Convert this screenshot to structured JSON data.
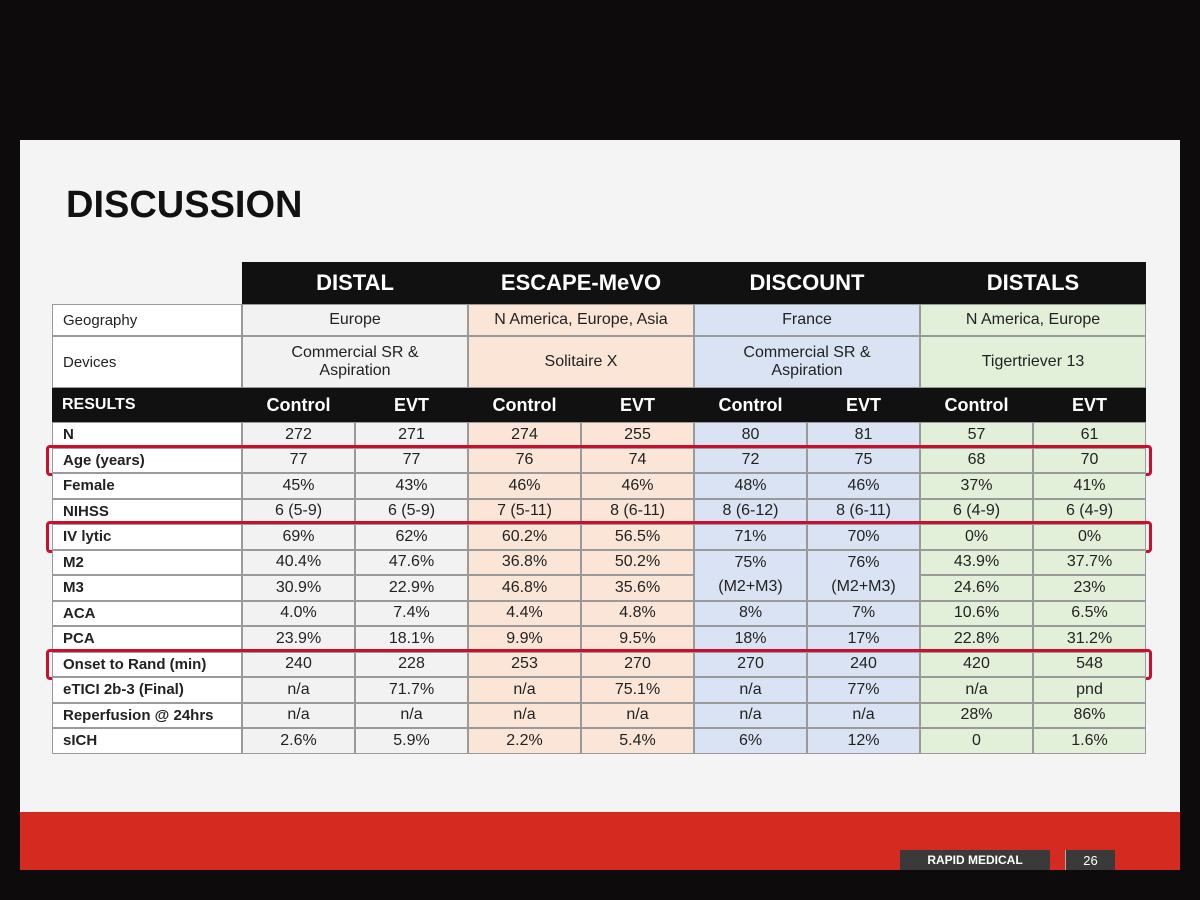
{
  "title": "DISCUSSION",
  "table": {
    "geography_label": "Geography",
    "devices_label": "Devices",
    "results_label": "RESULTS",
    "trials": [
      {
        "name": "DISTAL",
        "geography": "Europe",
        "devices": "Commercial SR & Aspiration"
      },
      {
        "name": "ESCAPE-MeVO",
        "geography": "N America,  Europe, Asia",
        "devices": "Solitaire X"
      },
      {
        "name": "DISCOUNT",
        "geography": "France",
        "devices": "Commercial SR & Aspiration"
      },
      {
        "name": "DISTALS",
        "geography": "N America, Europe",
        "devices": "Tigertriever 13"
      }
    ],
    "arms": [
      "Control",
      "EVT",
      "Control",
      "EVT",
      "Control",
      "EVT",
      "Control",
      "EVT"
    ],
    "rows": [
      {
        "label": "N",
        "values": [
          "272",
          "271",
          "274",
          "255",
          "80",
          "81",
          "57",
          "61"
        ]
      },
      {
        "label": "Age (years)",
        "values": [
          "77",
          "77",
          "76",
          "74",
          "72",
          "75",
          "68",
          "70"
        ]
      },
      {
        "label": "Female",
        "values": [
          "45%",
          "43%",
          "46%",
          "46%",
          "48%",
          "46%",
          "37%",
          "41%"
        ]
      },
      {
        "label": "NIHSS",
        "values": [
          "6 (5-9)",
          "6 (5-9)",
          "7 (5-11)",
          "8 (6-11)",
          "8 (6-12)",
          "8 (6-11)",
          "6 (4-9)",
          "6 (4-9)"
        ]
      },
      {
        "label": "IV lytic",
        "values": [
          "69%",
          "62%",
          "60.2%",
          "56.5%",
          "71%",
          "70%",
          "0%",
          "0%"
        ]
      },
      {
        "label": "M2",
        "values": [
          "40.4%",
          "47.6%",
          "36.8%",
          "50.2%",
          "75%",
          "76%",
          "43.9%",
          "37.7%"
        ]
      },
      {
        "label": "M3",
        "values": [
          "30.9%",
          "22.9%",
          "46.8%",
          "35.6%",
          "(M2+M3)",
          "(M2+M3)",
          "24.6%",
          "23%"
        ]
      },
      {
        "label": "ACA",
        "values": [
          "4.0%",
          "7.4%",
          "4.4%",
          "4.8%",
          "8%",
          "7%",
          "10.6%",
          "6.5%"
        ]
      },
      {
        "label": "PCA",
        "values": [
          "23.9%",
          "18.1%",
          "9.9%",
          "9.5%",
          "18%",
          "17%",
          "22.8%",
          "31.2%"
        ]
      },
      {
        "label": "Onset to Rand (min)",
        "values": [
          "240",
          "228",
          "253",
          "270",
          "270",
          "240",
          "420",
          "548"
        ]
      },
      {
        "label": "eTICI 2b-3 (Final)",
        "values": [
          "n/a",
          "71.7%",
          "n/a",
          "75.1%",
          "n/a",
          "77%",
          "n/a",
          "pnd"
        ]
      },
      {
        "label": "Reperfusion @ 24hrs",
        "values": [
          "n/a",
          "n/a",
          "n/a",
          "n/a",
          "n/a",
          "n/a",
          "28%",
          "86%"
        ]
      },
      {
        "label": "sICH",
        "values": [
          "2.6%",
          "5.9%",
          "2.2%",
          "5.4%",
          "6%",
          "12%",
          "0",
          "1.6%"
        ]
      }
    ]
  },
  "footer": {
    "logo": "RAPID MEDICAL",
    "page": "26"
  }
}
